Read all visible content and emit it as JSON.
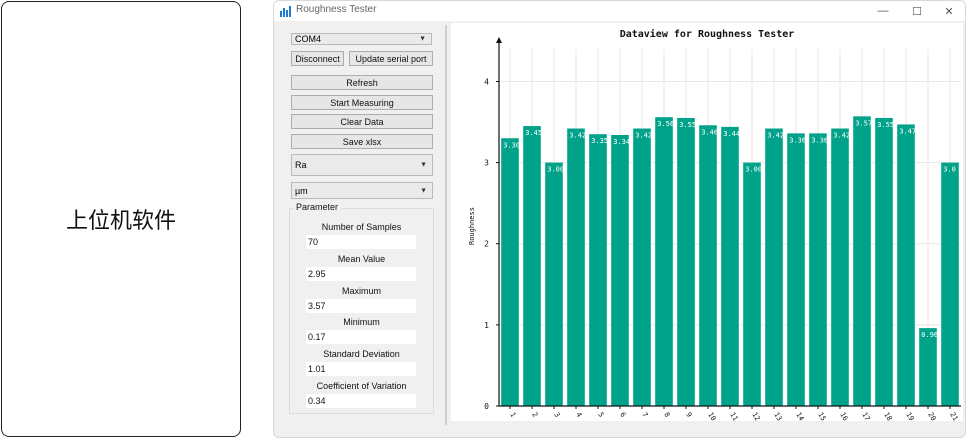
{
  "left_card": {
    "label": "上位机软件"
  },
  "window": {
    "title": "Roughness Tester",
    "min": "—",
    "max": "☐",
    "close": "✕"
  },
  "controls": {
    "port": "COM4",
    "disconnect": "Disconnect",
    "update_port": "Update serial port",
    "refresh": "Refresh",
    "start": "Start Measuring",
    "clear": "Clear Data",
    "save": "Save xlsx",
    "param_type": "Ra",
    "unit": "µm"
  },
  "parameters": {
    "group_title": "Parameter",
    "items": [
      {
        "label": "Number of Samples",
        "value": "70"
      },
      {
        "label": "Mean Value",
        "value": "2.95"
      },
      {
        "label": "Maximum",
        "value": "3.57"
      },
      {
        "label": "Minimum",
        "value": "0.17"
      },
      {
        "label": "Standard Deviation",
        "value": "1.01"
      },
      {
        "label": "Coefficient of Variation",
        "value": "0.34"
      }
    ]
  },
  "chart_data": {
    "type": "bar",
    "title": "Dataview for Roughness Tester",
    "ylabel": "Roughness",
    "xlabel": "",
    "ylim": [
      0,
      4.4
    ],
    "yticks": [
      0,
      1,
      2,
      3,
      4
    ],
    "categories": [
      "1",
      "2",
      "3",
      "4",
      "5",
      "6",
      "7",
      "8",
      "9",
      "10",
      "11",
      "12",
      "13",
      "14",
      "15",
      "16",
      "17",
      "18",
      "19",
      "20",
      "21"
    ],
    "values": [
      3.3,
      3.45,
      3.0,
      3.42,
      3.35,
      3.34,
      3.42,
      3.56,
      3.55,
      3.46,
      3.44,
      3.0,
      3.42,
      3.36,
      3.36,
      3.42,
      3.57,
      3.55,
      3.47,
      0.96,
      3.0
    ],
    "value_labels": [
      "3.30",
      "3.45",
      "3.00",
      "3.42",
      "3.35",
      "3.34",
      "3.42",
      "3.56",
      "3.55",
      "3.46",
      "3.44",
      "3.00",
      "3.42",
      "3.36",
      "3.36",
      "3.42",
      "3.57",
      "3.55",
      "3.47",
      "0.96",
      "3.0"
    ],
    "bar_color": "#00a38a",
    "grid": true
  }
}
